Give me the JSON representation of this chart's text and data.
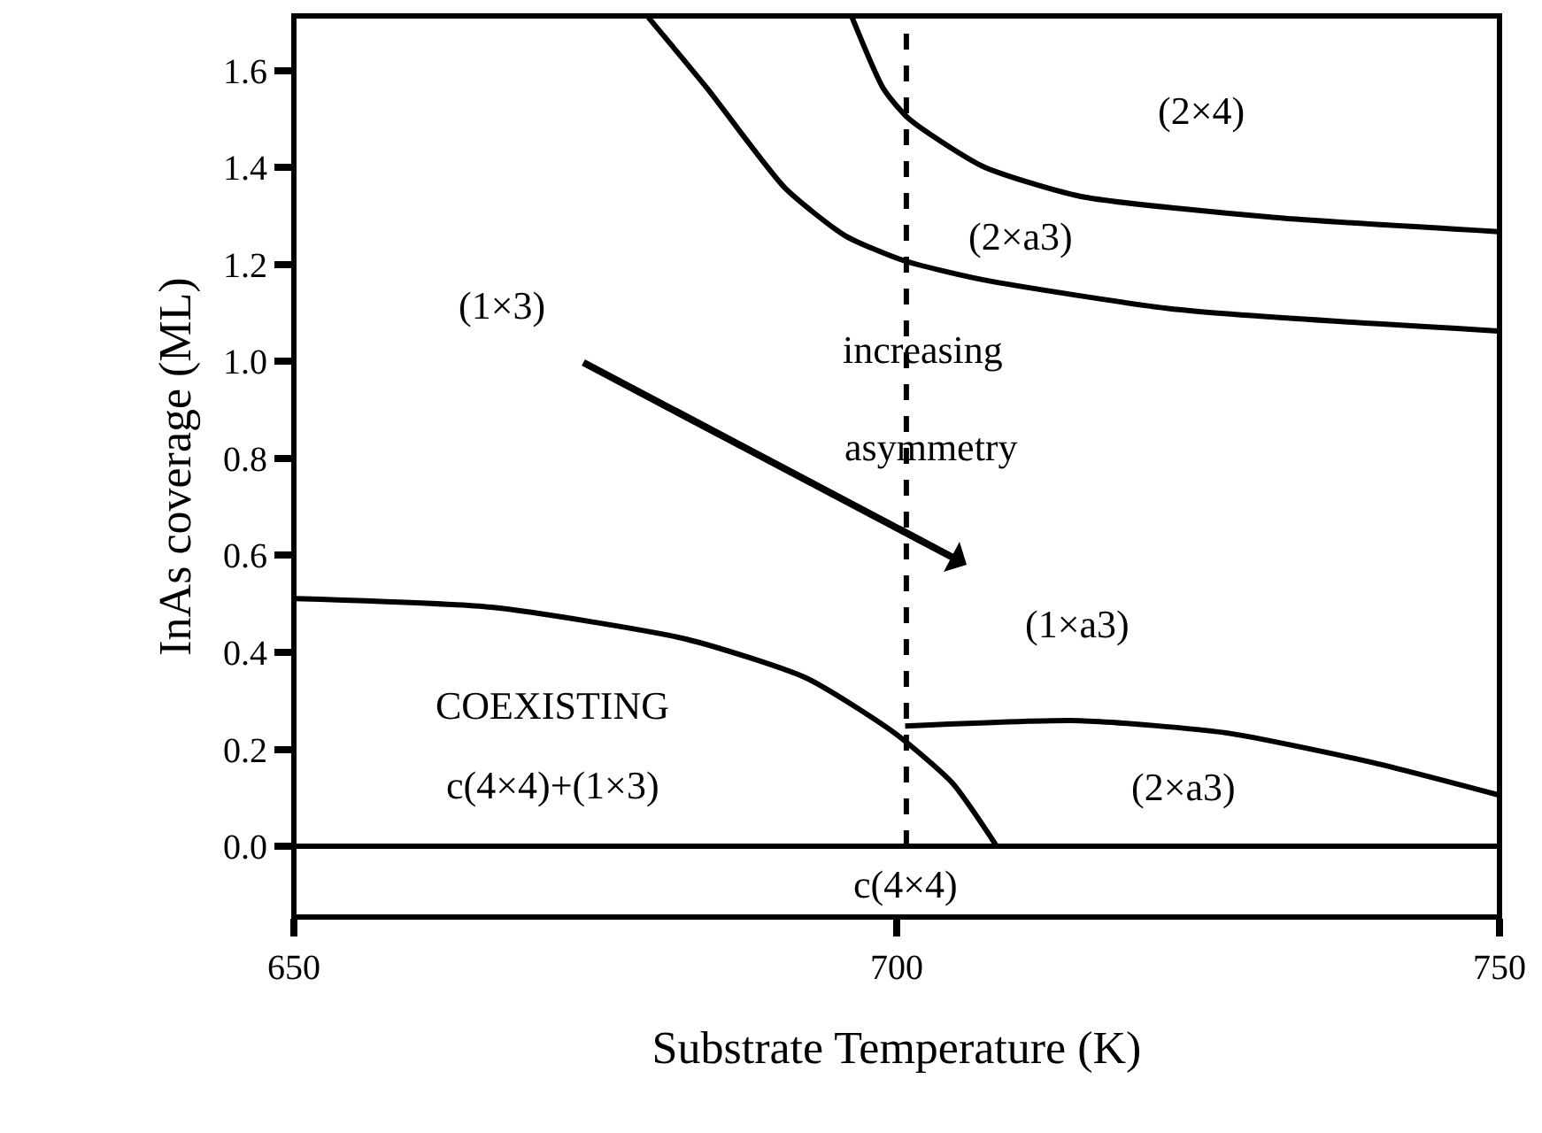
{
  "chart_data": {
    "type": "line",
    "xlabel": "Substrate Temperature (K)",
    "ylabel": "InAs coverage (ML)",
    "xlim": [
      650,
      750
    ],
    "xticks": [
      650,
      700,
      750
    ],
    "ylim": [
      -0.146,
      1.713
    ],
    "yticks": [
      {
        "value": 0,
        "label": "0.0"
      },
      0.2,
      0.4,
      0.6,
      0.8,
      {
        "value": 1,
        "label": "1.0"
      },
      1.2,
      1.4,
      1.6
    ],
    "line_style": "solid",
    "series": [
      {
        "color": "#000000",
        "x": [
          679.4,
          684.3,
          690.7,
          695.7,
          700.5,
          707.1,
          723.4,
          749.9
        ],
        "values": [
          1.71,
          1.563,
          1.359,
          1.26,
          1.209,
          1.169,
          1.107,
          1.063
        ]
      },
      {
        "color": "#000000",
        "x": [
          696.3,
          698.9,
          701,
          707.1,
          715.2,
          731.4,
          749.9
        ],
        "values": [
          1.71,
          1.563,
          1.501,
          1.403,
          1.341,
          1.297,
          1.268
        ]
      },
      {
        "color": "#000000",
        "x": [
          650.1,
          666.4,
          682.6,
          692.5,
          699.8,
          704.6,
          708.3
        ],
        "values": [
          0.511,
          0.493,
          0.427,
          0.347,
          0.234,
          0.131,
          0.0
        ]
      },
      {
        "color": "#000000",
        "x": [
          700.7,
          715.2,
          727.3,
          739.6,
          749.9
        ],
        "values": [
          0.248,
          0.259,
          0.234,
          0.172,
          0.106
        ]
      },
      {
        "color": "#000000",
        "x": [
          650,
          750
        ],
        "values": [
          0,
          0
        ]
      },
      {
        "color": "#000000",
        "x": [
          700.8,
          700.8
        ],
        "values": [
          0,
          1.713
        ],
        "line_style": "dashed"
      }
    ],
    "annotations": [
      "(1×3)",
      "(2×4)",
      "(2×a3)",
      "increasing",
      "asymmetry",
      "(1×a3)",
      "COEXISTING",
      "c(4×4)+(1×3)",
      "(2×a3)",
      "c(4×4)"
    ]
  }
}
